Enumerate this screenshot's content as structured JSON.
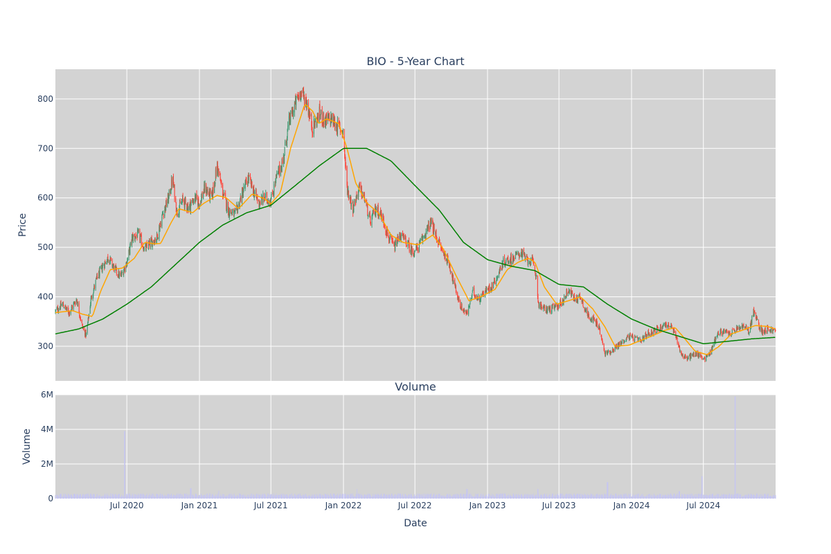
{
  "chart_data": [
    {
      "type": "candlestick",
      "title": "BIO - 5-Year Chart",
      "ylabel": "Price",
      "ylim": [
        230,
        860
      ],
      "yticks": [
        300,
        400,
        500,
        600,
        700,
        800
      ],
      "xlim": [
        "2020-01-02",
        "2024-12-31"
      ],
      "grid": true,
      "colors": {
        "up": "#3d9970",
        "down": "#ff4136",
        "ma_short": "#ffa500",
        "ma_long": "#008000",
        "background": "#d3d3d3",
        "grid": "#ffffff"
      },
      "close_anchors": [
        [
          "2020-01-02",
          370
        ],
        [
          "2020-01-20",
          385
        ],
        [
          "2020-02-05",
          368
        ],
        [
          "2020-02-25",
          395
        ],
        [
          "2020-03-10",
          340
        ],
        [
          "2020-03-20",
          322
        ],
        [
          "2020-04-01",
          395
        ],
        [
          "2020-04-15",
          435
        ],
        [
          "2020-05-01",
          462
        ],
        [
          "2020-05-15",
          480
        ],
        [
          "2020-06-01",
          455
        ],
        [
          "2020-06-15",
          440
        ],
        [
          "2020-07-01",
          470
        ],
        [
          "2020-07-15",
          520
        ],
        [
          "2020-08-01",
          525
        ],
        [
          "2020-08-15",
          495
        ],
        [
          "2020-09-01",
          510
        ],
        [
          "2020-09-15",
          520
        ],
        [
          "2020-10-01",
          570
        ],
        [
          "2020-10-15",
          600
        ],
        [
          "2020-10-25",
          640
        ],
        [
          "2020-11-05",
          570
        ],
        [
          "2020-11-20",
          595
        ],
        [
          "2020-12-05",
          580
        ],
        [
          "2020-12-20",
          600
        ],
        [
          "2021-01-01",
          590
        ],
        [
          "2021-01-15",
          620
        ],
        [
          "2021-02-01",
          600
        ],
        [
          "2021-02-15",
          665
        ],
        [
          "2021-03-01",
          610
        ],
        [
          "2021-03-15",
          575
        ],
        [
          "2021-04-01",
          565
        ],
        [
          "2021-04-20",
          610
        ],
        [
          "2021-05-05",
          640
        ],
        [
          "2021-05-20",
          610
        ],
        [
          "2021-06-01",
          590
        ],
        [
          "2021-06-15",
          600
        ],
        [
          "2021-07-01",
          595
        ],
        [
          "2021-07-15",
          640
        ],
        [
          "2021-08-01",
          675
        ],
        [
          "2021-08-15",
          750
        ],
        [
          "2021-09-01",
          790
        ],
        [
          "2021-09-15",
          815
        ],
        [
          "2021-10-01",
          790
        ],
        [
          "2021-10-15",
          740
        ],
        [
          "2021-11-01",
          770
        ],
        [
          "2021-11-15",
          755
        ],
        [
          "2021-12-01",
          760
        ],
        [
          "2021-12-15",
          745
        ],
        [
          "2021-12-31",
          735
        ],
        [
          "2022-01-10",
          620
        ],
        [
          "2022-01-25",
          580
        ],
        [
          "2022-02-10",
          620
        ],
        [
          "2022-02-25",
          595
        ],
        [
          "2022-03-10",
          550
        ],
        [
          "2022-03-25",
          580
        ],
        [
          "2022-04-10",
          560
        ],
        [
          "2022-04-25",
          520
        ],
        [
          "2022-05-10",
          500
        ],
        [
          "2022-05-25",
          525
        ],
        [
          "2022-06-10",
          510
        ],
        [
          "2022-06-25",
          490
        ],
        [
          "2022-07-10",
          500
        ],
        [
          "2022-07-25",
          525
        ],
        [
          "2022-08-10",
          550
        ],
        [
          "2022-08-25",
          520
        ],
        [
          "2022-09-10",
          490
        ],
        [
          "2022-09-25",
          470
        ],
        [
          "2022-10-10",
          420
        ],
        [
          "2022-10-25",
          380
        ],
        [
          "2022-11-10",
          365
        ],
        [
          "2022-11-25",
          410
        ],
        [
          "2022-12-10",
          395
        ],
        [
          "2022-12-25",
          410
        ],
        [
          "2023-01-10",
          420
        ],
        [
          "2023-01-25",
          440
        ],
        [
          "2023-02-10",
          470
        ],
        [
          "2023-02-25",
          475
        ],
        [
          "2023-03-10",
          480
        ],
        [
          "2023-03-25",
          490
        ],
        [
          "2023-04-10",
          475
        ],
        [
          "2023-04-25",
          470
        ],
        [
          "2023-05-05",
          440
        ],
        [
          "2023-05-10",
          385
        ],
        [
          "2023-05-25",
          375
        ],
        [
          "2023-06-10",
          375
        ],
        [
          "2023-06-25",
          380
        ],
        [
          "2023-07-10",
          390
        ],
        [
          "2023-07-25",
          415
        ],
        [
          "2023-08-10",
          395
        ],
        [
          "2023-08-25",
          400
        ],
        [
          "2023-09-10",
          365
        ],
        [
          "2023-09-25",
          355
        ],
        [
          "2023-10-10",
          340
        ],
        [
          "2023-10-25",
          285
        ],
        [
          "2023-11-10",
          290
        ],
        [
          "2023-11-25",
          300
        ],
        [
          "2023-12-10",
          310
        ],
        [
          "2023-12-25",
          320
        ],
        [
          "2024-01-10",
          315
        ],
        [
          "2024-01-25",
          310
        ],
        [
          "2024-02-10",
          325
        ],
        [
          "2024-02-25",
          330
        ],
        [
          "2024-03-10",
          335
        ],
        [
          "2024-03-25",
          345
        ],
        [
          "2024-04-10",
          340
        ],
        [
          "2024-04-25",
          315
        ],
        [
          "2024-05-05",
          285
        ],
        [
          "2024-05-20",
          275
        ],
        [
          "2024-06-10",
          285
        ],
        [
          "2024-06-25",
          280
        ],
        [
          "2024-07-05",
          275
        ],
        [
          "2024-07-20",
          290
        ],
        [
          "2024-08-05",
          325
        ],
        [
          "2024-08-20",
          330
        ],
        [
          "2024-09-05",
          325
        ],
        [
          "2024-09-25",
          335
        ],
        [
          "2024-10-10",
          340
        ],
        [
          "2024-10-25",
          330
        ],
        [
          "2024-11-05",
          370
        ],
        [
          "2024-11-15",
          350
        ],
        [
          "2024-11-25",
          330
        ],
        [
          "2024-12-10",
          335
        ],
        [
          "2024-12-31",
          330
        ]
      ],
      "moving_average_short": [
        [
          "2020-01-02",
          368
        ],
        [
          "2020-02-15",
          372
        ],
        [
          "2020-03-10",
          365
        ],
        [
          "2020-04-05",
          360
        ],
        [
          "2020-04-25",
          410
        ],
        [
          "2020-05-20",
          455
        ],
        [
          "2020-06-20",
          458
        ],
        [
          "2020-07-20",
          478
        ],
        [
          "2020-08-15",
          510
        ],
        [
          "2020-09-10",
          507
        ],
        [
          "2020-09-25",
          508
        ],
        [
          "2020-10-20",
          548
        ],
        [
          "2020-11-10",
          578
        ],
        [
          "2020-12-15",
          570
        ],
        [
          "2021-01-10",
          588
        ],
        [
          "2021-02-15",
          605
        ],
        [
          "2021-03-10",
          600
        ],
        [
          "2021-04-10",
          578
        ],
        [
          "2021-05-15",
          608
        ],
        [
          "2021-06-15",
          598
        ],
        [
          "2021-07-01",
          588
        ],
        [
          "2021-07-25",
          610
        ],
        [
          "2021-08-20",
          700
        ],
        [
          "2021-09-25",
          790
        ],
        [
          "2021-10-15",
          775
        ],
        [
          "2021-10-30",
          750
        ],
        [
          "2021-11-20",
          760
        ],
        [
          "2021-12-20",
          750
        ],
        [
          "2022-01-10",
          700
        ],
        [
          "2022-02-01",
          630
        ],
        [
          "2022-03-01",
          590
        ],
        [
          "2022-04-01",
          568
        ],
        [
          "2022-05-01",
          525
        ],
        [
          "2022-06-01",
          510
        ],
        [
          "2022-07-10",
          505
        ],
        [
          "2022-08-15",
          525
        ],
        [
          "2022-09-10",
          498
        ],
        [
          "2022-10-15",
          440
        ],
        [
          "2022-11-15",
          392
        ],
        [
          "2022-12-15",
          400
        ],
        [
          "2023-01-20",
          415
        ],
        [
          "2023-02-20",
          455
        ],
        [
          "2023-03-20",
          470
        ],
        [
          "2023-04-15",
          478
        ],
        [
          "2023-05-01",
          470
        ],
        [
          "2023-05-25",
          420
        ],
        [
          "2023-06-25",
          385
        ],
        [
          "2023-07-25",
          392
        ],
        [
          "2023-08-25",
          400
        ],
        [
          "2023-09-25",
          375
        ],
        [
          "2023-10-25",
          340
        ],
        [
          "2023-11-20",
          300
        ],
        [
          "2023-12-25",
          302
        ],
        [
          "2024-01-25",
          312
        ],
        [
          "2024-02-25",
          322
        ],
        [
          "2024-03-25",
          332
        ],
        [
          "2024-04-20",
          338
        ],
        [
          "2024-05-10",
          320
        ],
        [
          "2024-06-10",
          290
        ],
        [
          "2024-07-10",
          283
        ],
        [
          "2024-08-10",
          300
        ],
        [
          "2024-09-10",
          325
        ],
        [
          "2024-10-10",
          333
        ],
        [
          "2024-11-10",
          342
        ],
        [
          "2024-12-10",
          340
        ],
        [
          "2024-12-31",
          335
        ]
      ],
      "moving_average_long": [
        [
          "2020-01-02",
          325
        ],
        [
          "2020-03-01",
          335
        ],
        [
          "2020-05-01",
          355
        ],
        [
          "2020-07-01",
          385
        ],
        [
          "2020-09-01",
          420
        ],
        [
          "2020-11-01",
          465
        ],
        [
          "2021-01-01",
          510
        ],
        [
          "2021-03-01",
          545
        ],
        [
          "2021-05-01",
          570
        ],
        [
          "2021-07-01",
          585
        ],
        [
          "2021-09-01",
          625
        ],
        [
          "2021-11-01",
          665
        ],
        [
          "2022-01-01",
          700
        ],
        [
          "2022-03-01",
          700
        ],
        [
          "2022-05-01",
          675
        ],
        [
          "2022-07-01",
          625
        ],
        [
          "2022-09-01",
          575
        ],
        [
          "2022-11-01",
          510
        ],
        [
          "2023-01-01",
          475
        ],
        [
          "2023-03-01",
          462
        ],
        [
          "2023-05-01",
          453
        ],
        [
          "2023-07-01",
          425
        ],
        [
          "2023-09-01",
          420
        ],
        [
          "2023-11-01",
          385
        ],
        [
          "2024-01-01",
          355
        ],
        [
          "2024-03-01",
          335
        ],
        [
          "2024-05-01",
          320
        ],
        [
          "2024-07-01",
          305
        ],
        [
          "2024-09-01",
          310
        ],
        [
          "2024-11-01",
          315
        ],
        [
          "2024-12-31",
          318
        ]
      ]
    },
    {
      "type": "bar",
      "title": "Volume",
      "xlabel": "Date",
      "ylabel": "Volume",
      "ylim": [
        0,
        6000000
      ],
      "ytick_values": [
        0,
        2000000,
        4000000,
        6000000
      ],
      "ytick_labels": [
        "0",
        "2M",
        "4M",
        "6M"
      ],
      "xlim": [
        "2020-01-02",
        "2024-12-31"
      ],
      "xticks": [
        {
          "date": "2020-07-01",
          "label": "Jul 2020"
        },
        {
          "date": "2021-01-01",
          "label": "Jan 2021"
        },
        {
          "date": "2021-07-01",
          "label": "Jul 2021"
        },
        {
          "date": "2022-01-01",
          "label": "Jan 2022"
        },
        {
          "date": "2022-07-01",
          "label": "Jul 2022"
        },
        {
          "date": "2023-01-01",
          "label": "Jan 2023"
        },
        {
          "date": "2023-07-01",
          "label": "Jul 2023"
        },
        {
          "date": "2024-01-01",
          "label": "Jan 2024"
        },
        {
          "date": "2024-07-01",
          "label": "Jul 2024"
        }
      ],
      "colors": {
        "bar": "#c6c6f0",
        "background": "#d3d3d3",
        "grid": "#ffffff"
      },
      "typical_volume": 200000,
      "spikes": [
        [
          "2020-06-26",
          3900000
        ],
        [
          "2020-12-10",
          600000
        ],
        [
          "2021-02-20",
          450000
        ],
        [
          "2022-02-05",
          550000
        ],
        [
          "2022-11-10",
          550000
        ],
        [
          "2023-05-08",
          550000
        ],
        [
          "2023-11-01",
          950000
        ],
        [
          "2024-05-01",
          420000
        ],
        [
          "2024-06-28",
          1300000
        ],
        [
          "2024-09-20",
          5900000
        ]
      ]
    }
  ]
}
